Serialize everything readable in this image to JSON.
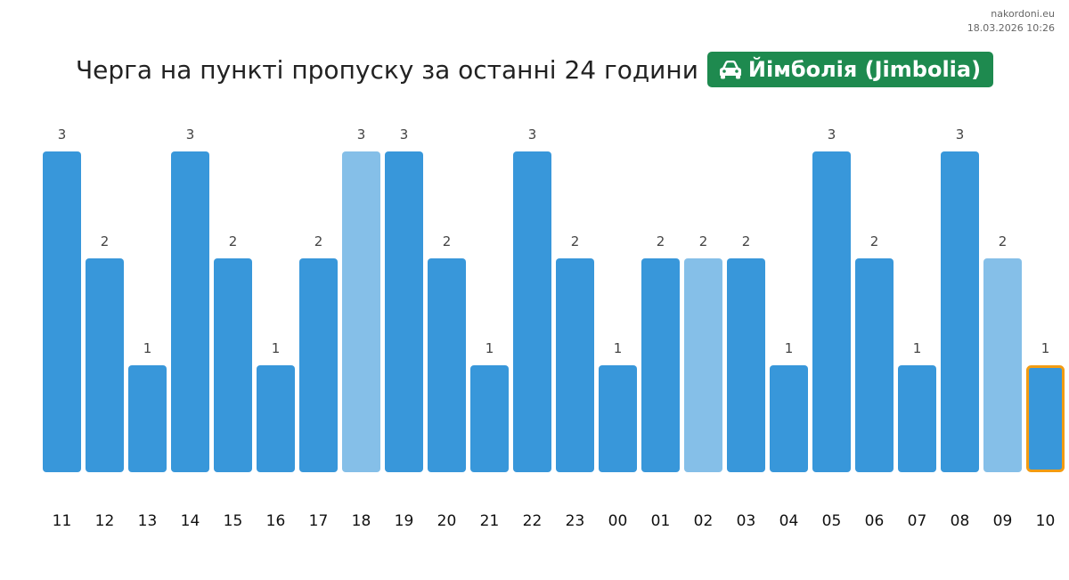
{
  "meta": {
    "site": "nakordoni.eu",
    "datetime": "18.03.2026 10:26"
  },
  "header": {
    "title": "Черга на пункті пропуску за останні 24 години",
    "checkpoint": "Йімболія (Jimbolia)",
    "checkpoint_icon": "car-icon"
  },
  "colors": {
    "bar": "#3897da",
    "bar_light": "#85bfe8",
    "highlight_outline": "#f39c12",
    "badge": "#1e8a4f",
    "value_label": "#444444",
    "tick_label": "#111111"
  },
  "chart_data": {
    "type": "bar",
    "title": "Черга на пункті пропуску за останні 24 години",
    "categories": [
      "11",
      "12",
      "13",
      "14",
      "15",
      "16",
      "17",
      "18",
      "19",
      "20",
      "21",
      "22",
      "23",
      "00",
      "01",
      "02",
      "03",
      "04",
      "05",
      "06",
      "07",
      "08",
      "09",
      "10"
    ],
    "values": [
      3,
      2,
      1,
      3,
      2,
      1,
      2,
      3,
      3,
      2,
      1,
      3,
      2,
      1,
      2,
      2,
      2,
      1,
      3,
      2,
      1,
      3,
      2,
      1
    ],
    "light_bars": [
      7,
      15,
      22
    ],
    "highlighted_bar": 23,
    "ylim": [
      0,
      3
    ],
    "xlabel": "",
    "ylabel": "",
    "grid": false,
    "legend": "none"
  }
}
